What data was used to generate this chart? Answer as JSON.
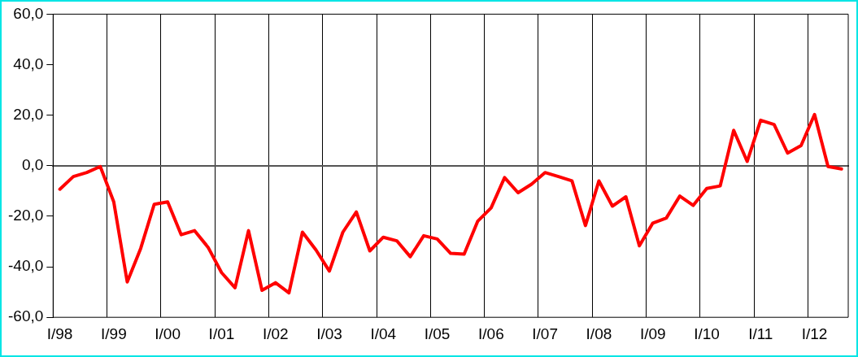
{
  "chart_data": {
    "type": "line",
    "categories": [
      "I/98",
      null,
      null,
      null,
      "I/99",
      null,
      null,
      null,
      "I/00",
      null,
      null,
      null,
      "I/01",
      null,
      null,
      null,
      "I/02",
      null,
      null,
      null,
      "I/03",
      null,
      null,
      null,
      "I/04",
      null,
      null,
      null,
      "I/05",
      null,
      null,
      null,
      "I/06",
      null,
      null,
      null,
      "I/07",
      null,
      null,
      null,
      "I/08",
      null,
      null,
      null,
      "I/09",
      null,
      null,
      null,
      "I/10",
      null,
      null,
      null,
      "I/11",
      null,
      null,
      null,
      "I/12",
      null,
      null
    ],
    "series": [
      {
        "color": "#ff0000",
        "values": [
          -9.3,
          -4.3,
          -2.7,
          -0.3,
          -14.3,
          -46,
          -32.7,
          -15.3,
          -14.3,
          -27.3,
          -25.7,
          -32.3,
          -42.3,
          -48.3,
          -25.7,
          -49.3,
          -46.3,
          -50.3,
          -26.3,
          -33.3,
          -41.7,
          -26.3,
          -18.3,
          -33.7,
          -28.3,
          -29.7,
          -36,
          -27.7,
          -29,
          -34.7,
          -35,
          -22,
          -16.7,
          -4.7,
          -10.7,
          -7.3,
          -2.7,
          -4.3,
          -6,
          -23.7,
          -6,
          -16,
          -12.3,
          -31.7,
          -22.7,
          -20.7,
          -12,
          -15.7,
          -9,
          -8,
          14,
          1.7,
          18,
          16.3,
          5,
          8,
          20.3,
          -0.3,
          -1.3
        ]
      }
    ],
    "ylim": [
      -60,
      60
    ],
    "yticks": [
      {
        "value": -60,
        "label": "-60,0"
      },
      {
        "value": -40,
        "label": "-40,0"
      },
      {
        "value": -20,
        "label": "-20,0"
      },
      {
        "value": 0,
        "label": "0,0"
      },
      {
        "value": 20,
        "label": "20,0"
      },
      {
        "value": 40,
        "label": "40,0"
      },
      {
        "value": 60,
        "label": "60,0"
      }
    ],
    "grid": "x",
    "legend": false,
    "marker": "none",
    "line_style": "solid"
  }
}
